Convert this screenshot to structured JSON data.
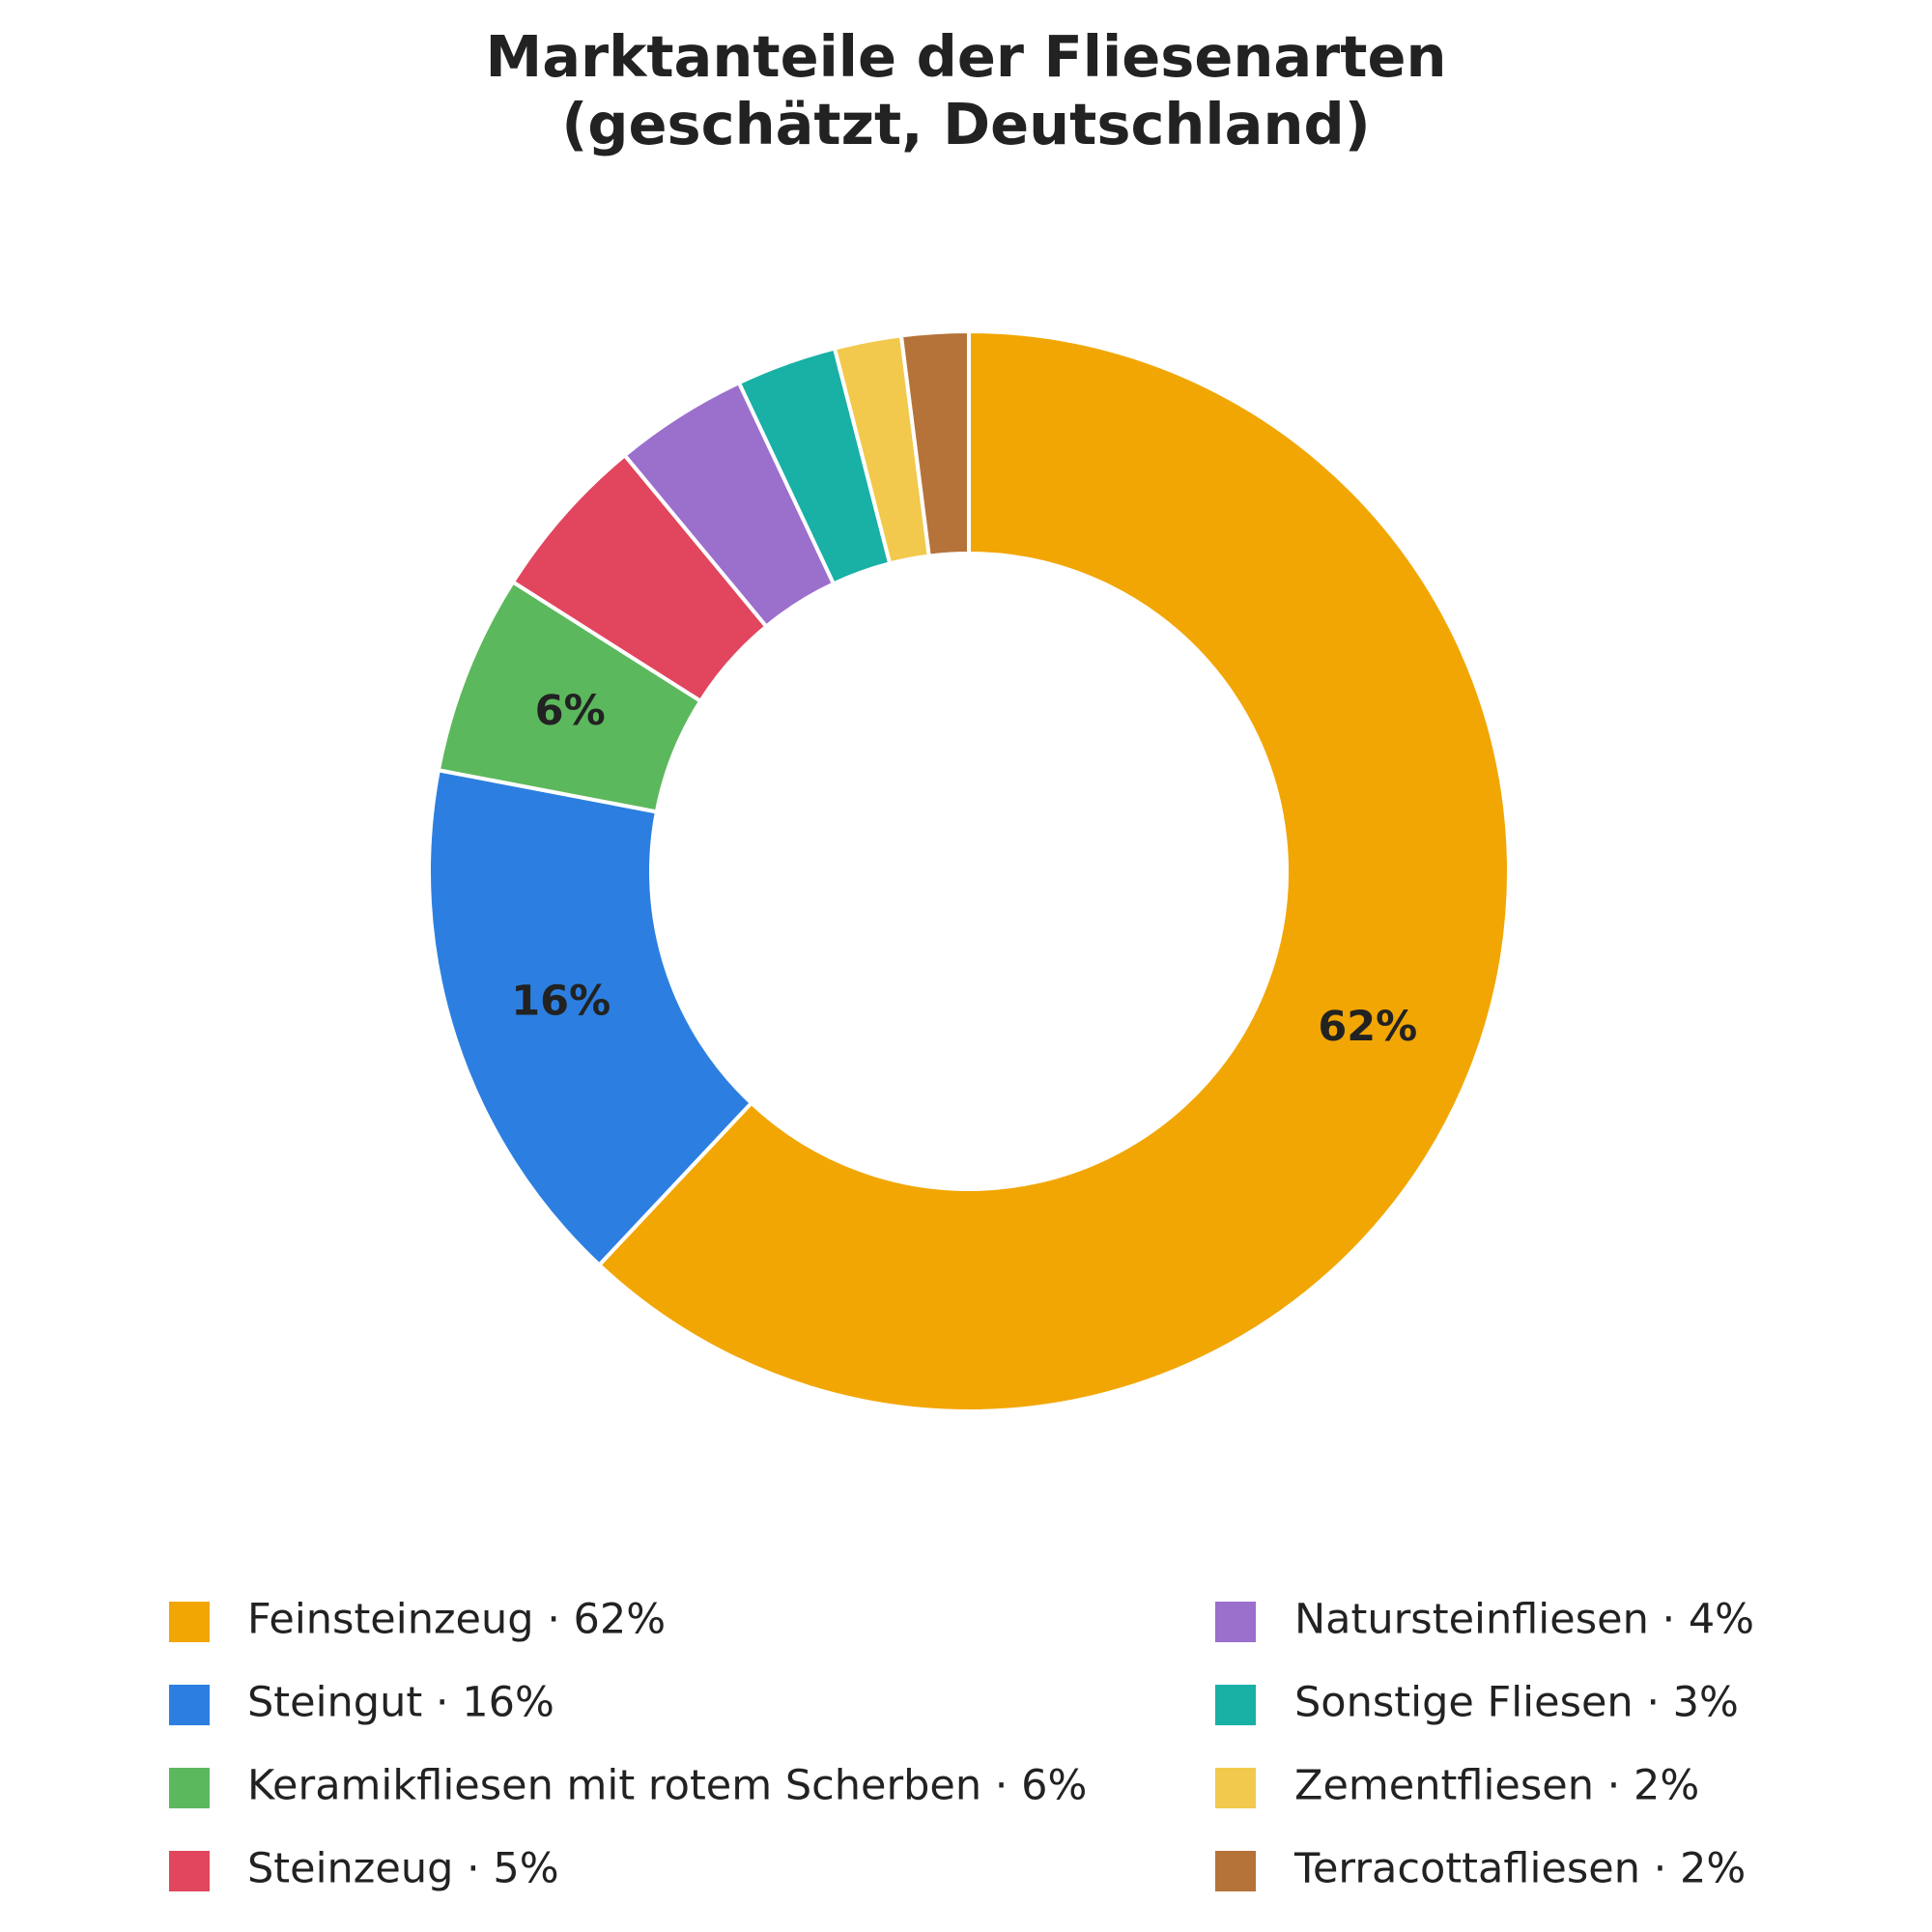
{
  "chart_data": {
    "type": "donut",
    "title": "Marktanteile der Fliesenarten\n(geschätzt, Deutschland)",
    "categories": [
      "Feinsteinzeug · 62%",
      "Steingut · 16%",
      "Keramikfliesen mit rotem Scherben · 6%",
      "Steinzeug · 5%",
      "Natursteinfliesen · 4%",
      "Sonstige Fliesen · 3%",
      "Zementfliesen · 2%",
      "Terracottafliesen · 2%"
    ],
    "values": [
      62,
      16,
      6,
      5,
      4,
      3,
      2,
      2
    ],
    "value_labels": [
      "62%",
      "16%",
      "6%",
      null,
      null,
      null,
      null,
      null
    ],
    "colors": [
      "#f2a603",
      "#2c7fe0",
      "#5cb85c",
      "#e1465e",
      "#9b6fcc",
      "#19b0a6",
      "#f2c94c",
      "#b5733a"
    ],
    "legend": "bottom"
  }
}
